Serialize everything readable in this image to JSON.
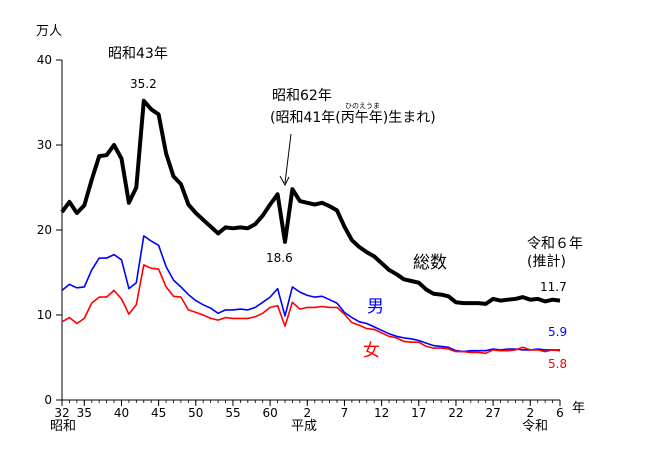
{
  "chart_data": {
    "type": "line",
    "y_unit": "万人",
    "ylim": [
      0,
      40
    ],
    "y_ticks": [
      "0",
      "10",
      "20",
      "30",
      "40"
    ],
    "x_unit": "年",
    "x_ticks": [
      "32",
      "35",
      "40",
      "45",
      "50",
      "55",
      "60",
      "2",
      "7",
      "12",
      "17",
      "22",
      "27",
      "2",
      "6"
    ],
    "eras": [
      "昭和",
      "平成",
      "令和"
    ],
    "grid": false,
    "x": [
      1957,
      1958,
      1959,
      1960,
      1961,
      1962,
      1963,
      1964,
      1965,
      1966,
      1967,
      1968,
      1969,
      1970,
      1971,
      1972,
      1973,
      1974,
      1975,
      1976,
      1977,
      1978,
      1979,
      1980,
      1981,
      1982,
      1983,
      1984,
      1985,
      1986,
      1987,
      1988,
      1989,
      1990,
      1991,
      1992,
      1993,
      1994,
      1995,
      1996,
      1997,
      1998,
      1999,
      2000,
      2001,
      2002,
      2003,
      2004,
      2005,
      2006,
      2007,
      2008,
      2009,
      2010,
      2011,
      2012,
      2013,
      2014,
      2015,
      2016,
      2017,
      2018,
      2019,
      2020,
      2021,
      2022,
      2023,
      2024
    ],
    "series": [
      {
        "name": "総数",
        "color": "#000000",
        "values": [
          22.1,
          23.3,
          22.0,
          22.9,
          25.9,
          28.7,
          28.8,
          30.0,
          28.4,
          23.2,
          25.0,
          35.2,
          34.2,
          33.6,
          29.0,
          26.3,
          25.4,
          23.0,
          22.0,
          21.2,
          20.4,
          19.6,
          20.3,
          20.2,
          20.3,
          20.2,
          20.7,
          21.7,
          23.0,
          24.2,
          18.6,
          24.8,
          23.4,
          23.2,
          23.0,
          23.2,
          22.8,
          22.3,
          20.4,
          18.8,
          18.0,
          17.4,
          16.9,
          16.1,
          15.3,
          14.8,
          14.2,
          14.0,
          13.8,
          13.0,
          12.5,
          12.4,
          12.2,
          11.5,
          11.4,
          11.4,
          11.4,
          11.3,
          11.9,
          11.7,
          11.8,
          11.9,
          12.1,
          11.8,
          11.9,
          11.6,
          11.8,
          11.7
        ]
      },
      {
        "name": "男",
        "color": "#0000ff",
        "values": [
          12.9,
          13.6,
          13.2,
          13.3,
          15.3,
          16.7,
          16.7,
          17.1,
          16.5,
          13.1,
          13.8,
          19.3,
          18.7,
          18.2,
          15.7,
          14.1,
          13.3,
          12.4,
          11.7,
          11.2,
          10.8,
          10.2,
          10.6,
          10.6,
          10.7,
          10.6,
          10.9,
          11.5,
          12.1,
          13.1,
          9.9,
          13.3,
          12.7,
          12.3,
          12.1,
          12.2,
          11.8,
          11.4,
          10.3,
          9.7,
          9.2,
          9.0,
          8.6,
          8.2,
          7.8,
          7.5,
          7.3,
          7.2,
          7.0,
          6.7,
          6.4,
          6.3,
          6.2,
          5.8,
          5.7,
          5.8,
          5.8,
          5.8,
          6.0,
          5.9,
          6.0,
          6.0,
          5.9,
          5.9,
          6.0,
          5.9,
          5.9,
          5.9
        ]
      },
      {
        "name": "女",
        "color": "#ff0000",
        "values": [
          9.2,
          9.7,
          9.0,
          9.6,
          11.4,
          12.1,
          12.1,
          12.9,
          11.9,
          10.1,
          11.2,
          15.9,
          15.5,
          15.4,
          13.3,
          12.2,
          12.1,
          10.6,
          10.3,
          10.0,
          9.6,
          9.4,
          9.7,
          9.6,
          9.6,
          9.6,
          9.8,
          10.2,
          10.9,
          11.1,
          8.7,
          11.5,
          10.7,
          10.9,
          10.9,
          11.0,
          10.9,
          10.9,
          10.1,
          9.1,
          8.8,
          8.4,
          8.3,
          7.9,
          7.5,
          7.3,
          6.9,
          6.8,
          6.8,
          6.3,
          6.1,
          6.1,
          6.0,
          5.7,
          5.7,
          5.6,
          5.6,
          5.5,
          5.9,
          5.8,
          5.8,
          5.9,
          6.2,
          5.9,
          5.9,
          5.7,
          5.9,
          5.8
        ]
      }
    ],
    "annotations": {
      "showa43": "昭和43年",
      "peak": "35.2",
      "showa62": "昭和62年",
      "hinoe_open": "(昭和41年(",
      "hinoe_kanji": "丙午年",
      "hinoe_close": ")生まれ)",
      "hinoe_ruby": "ひのえうま",
      "dip": "18.6",
      "total_label": "総数",
      "male_label": "男",
      "female_label": "女",
      "estimate_1": "令和６年",
      "estimate_2": "(推計)",
      "total_end": "11.7",
      "male_end": "5.9",
      "female_end": "5.8"
    }
  }
}
